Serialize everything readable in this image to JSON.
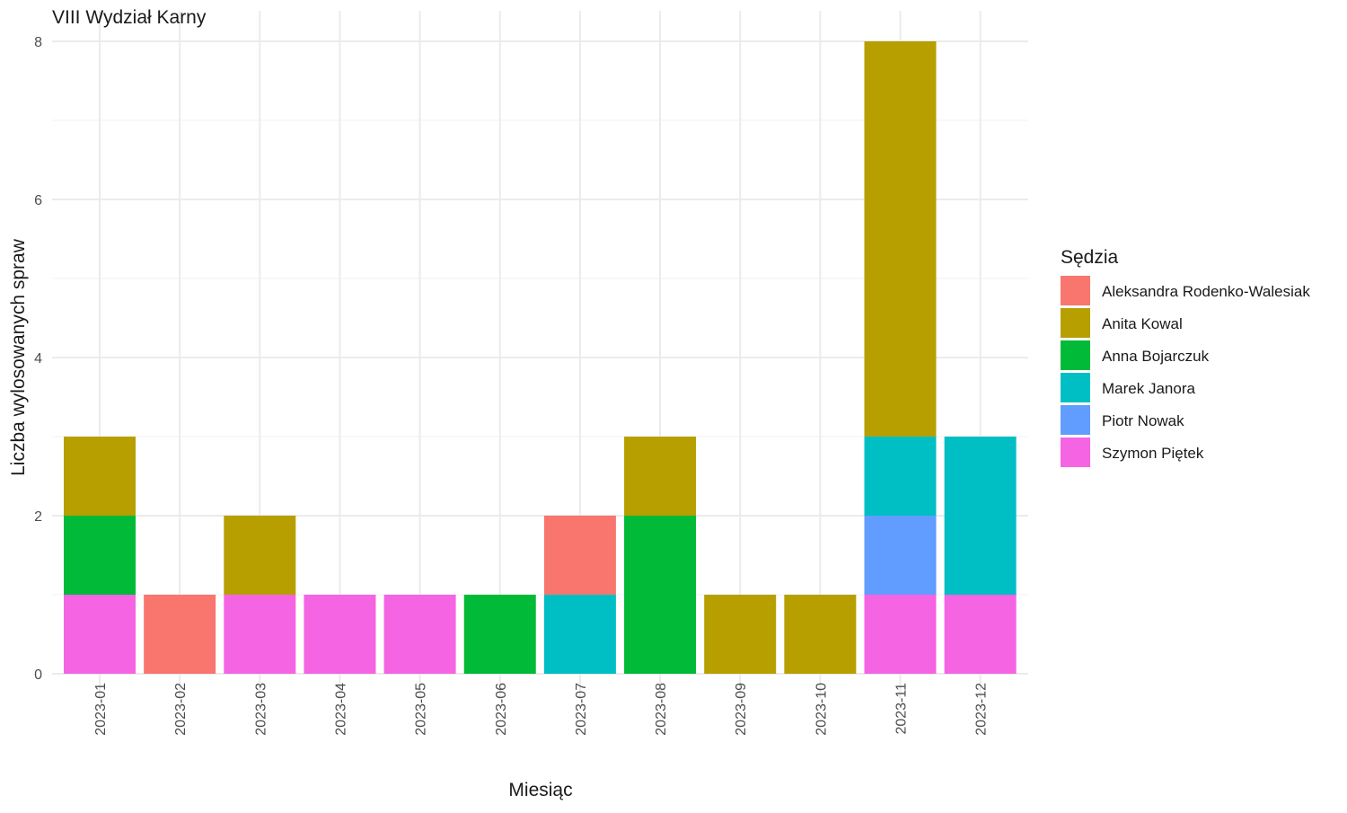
{
  "chart_data": {
    "type": "bar",
    "stacked": true,
    "title": "VIII Wydział Karny",
    "xlabel": "Miesiąc",
    "ylabel": "Liczba wylosowanych spraw",
    "ylim": [
      0,
      8
    ],
    "yticks": [
      0,
      2,
      4,
      6,
      8
    ],
    "grid": true,
    "legend_position": "right",
    "legend_title": "Sędzia",
    "categories": [
      "2023-01",
      "2023-02",
      "2023-03",
      "2023-04",
      "2023-05",
      "2023-06",
      "2023-07",
      "2023-08",
      "2023-09",
      "2023-10",
      "2023-11",
      "2023-12"
    ],
    "series": [
      {
        "name": "Aleksandra Rodenko-Walesiak",
        "color": "#F8766D",
        "values": [
          0,
          1,
          0,
          0,
          0,
          0,
          1,
          0,
          0,
          0,
          0,
          0
        ]
      },
      {
        "name": "Anita Kowal",
        "color": "#B79F00",
        "values": [
          1,
          0,
          1,
          0,
          0,
          0,
          0,
          1,
          1,
          1,
          5,
          0
        ]
      },
      {
        "name": "Anna Bojarczuk",
        "color": "#00BA38",
        "values": [
          1,
          0,
          0,
          0,
          0,
          1,
          0,
          2,
          0,
          0,
          0,
          0
        ]
      },
      {
        "name": "Marek Janora",
        "color": "#00BFC4",
        "values": [
          0,
          0,
          0,
          0,
          0,
          0,
          1,
          0,
          0,
          0,
          1,
          2
        ]
      },
      {
        "name": "Piotr Nowak",
        "color": "#619CFF",
        "values": [
          0,
          0,
          0,
          0,
          0,
          0,
          0,
          0,
          0,
          0,
          1,
          0
        ]
      },
      {
        "name": "Szymon Piętek",
        "color": "#F564E3",
        "values": [
          1,
          0,
          1,
          1,
          1,
          0,
          0,
          0,
          0,
          0,
          1,
          1
        ]
      }
    ]
  }
}
